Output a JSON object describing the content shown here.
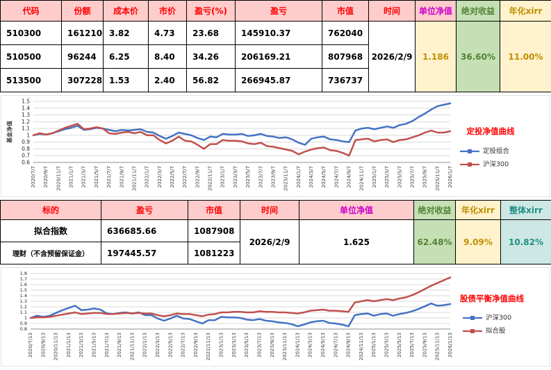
{
  "colors": {
    "header_pink_bg": "#FFCCCC",
    "header_red_text": "#FF0000",
    "header_magenta_text": "#CC00CC",
    "green_bg": "#C5E0B4",
    "green_text": "#538135",
    "yellow_bg": "#FFF2CC",
    "yellow_text": "#BF8F00",
    "teal_bg": "#CDE8E4",
    "teal_text": "#1F8F86",
    "series_blue": "#4472C4",
    "series_red": "#C0504D",
    "chart_title_red": "#FF0000"
  },
  "table1": {
    "headers": [
      "代码",
      "份额",
      "成本价",
      "市价",
      "盈亏(%)",
      "盈亏",
      "市值",
      "时间",
      "单位净值",
      "绝对收益",
      "年化xirr"
    ],
    "rows": [
      [
        "510300",
        "161210",
        "3.82",
        "4.73",
        "23.68",
        "145910.37",
        "762040"
      ],
      [
        "510500",
        "96244",
        "6.25",
        "8.40",
        "34.26",
        "206169.21",
        "807968"
      ],
      [
        "513500",
        "307228",
        "1.53",
        "2.40",
        "56.82",
        "266945.87",
        "736737"
      ]
    ],
    "summary": {
      "time": "2026/2/9",
      "unit_nav": "1.186",
      "abs_return": "36.60%",
      "xirr": "11.00%"
    }
  },
  "table2": {
    "headers": [
      "标的",
      "盈亏",
      "市值",
      "时间",
      "单位净值",
      "绝对收益",
      "年化xirr",
      "整体xirr"
    ],
    "rows": [
      [
        "拟合指数",
        "636685.66",
        "1087908"
      ],
      [
        "理财（不含预留保证金）",
        "197445.57",
        "1081223"
      ]
    ],
    "summary": {
      "time": "2026/2/9",
      "unit_nav": "1.625",
      "abs_return": "62.48%",
      "xirr": "9.09%",
      "overall_xirr": "10.82%"
    }
  },
  "chart_data": [
    {
      "type": "line",
      "title": "定投净值曲线",
      "title_color": "#FF0000",
      "ylabel": "基金净值",
      "ylim": [
        0.6,
        1.5
      ],
      "ytick_step": 0.1,
      "grid": true,
      "legend_position": "right",
      "x_labels": [
        "2020/7/7",
        "2020/9/7",
        "2020/11/7",
        "2021/1/7",
        "2021/3/7",
        "2021/5/7",
        "2021/7/7",
        "2021/9/7",
        "2021/11/7",
        "2022/1/7",
        "2022/3/7",
        "2022/5/7",
        "2022/7/7",
        "2022/9/7",
        "2022/11/7",
        "2023/1/7",
        "2023/3/7",
        "2023/5/7",
        "2023/7/7",
        "2023/9/7",
        "2023/11/7",
        "2024/1/7",
        "2024/3/7",
        "2024/5/7",
        "2024/7/7",
        "2024/9/7",
        "2024/11/7",
        "2025/1/7",
        "2025/3/7",
        "2025/5/7",
        "2025/7/7",
        "2025/9/7",
        "2025/11/7",
        "2026/1/7"
      ],
      "series": [
        {
          "name": "定投组合",
          "color": "#4472C4",
          "values": [
            1.0,
            1.02,
            1.01,
            1.03,
            1.06,
            1.09,
            1.11,
            1.14,
            1.08,
            1.09,
            1.11,
            1.1,
            1.08,
            1.06,
            1.08,
            1.07,
            1.08,
            1.09,
            1.05,
            1.04,
            0.99,
            0.95,
            0.99,
            1.04,
            1.02,
            1.0,
            0.96,
            0.93,
            0.98,
            0.97,
            1.02,
            1.01,
            1.01,
            1.02,
            0.99,
            1.0,
            1.02,
            0.99,
            0.98,
            0.96,
            0.97,
            0.94,
            0.89,
            0.86,
            0.95,
            0.97,
            0.98,
            0.94,
            0.93,
            0.91,
            0.9,
            1.07,
            1.1,
            1.11,
            1.09,
            1.11,
            1.13,
            1.11,
            1.15,
            1.17,
            1.21,
            1.27,
            1.32,
            1.38,
            1.43,
            1.45,
            1.47
          ]
        },
        {
          "name": "沪深300",
          "color": "#C0504D",
          "values": [
            1.0,
            1.03,
            1.01,
            1.03,
            1.07,
            1.11,
            1.14,
            1.17,
            1.09,
            1.1,
            1.12,
            1.1,
            1.03,
            1.02,
            1.04,
            1.05,
            1.03,
            1.05,
            1.0,
            1.0,
            0.93,
            0.88,
            0.92,
            0.98,
            0.92,
            0.91,
            0.86,
            0.8,
            0.87,
            0.87,
            0.93,
            0.92,
            0.92,
            0.91,
            0.88,
            0.87,
            0.89,
            0.84,
            0.83,
            0.81,
            0.79,
            0.77,
            0.72,
            0.76,
            0.79,
            0.81,
            0.82,
            0.78,
            0.77,
            0.74,
            0.7,
            0.93,
            0.94,
            0.95,
            0.91,
            0.93,
            0.94,
            0.9,
            0.93,
            0.94,
            0.97,
            1.0,
            1.04,
            1.07,
            1.04,
            1.04,
            1.06
          ]
        }
      ]
    },
    {
      "type": "line",
      "title": "股债平衡净值曲线",
      "title_color": "#FF0000",
      "ylabel": "",
      "ylim": [
        0.8,
        1.8
      ],
      "ytick_step": 0.1,
      "grid": true,
      "legend_position": "right",
      "x_labels": [
        "2020/7/13",
        "2020/9/13",
        "2020/11/13",
        "2021/1/13",
        "2021/3/13",
        "2021/5/13",
        "2021/7/13",
        "2021/9/13",
        "2021/11/13",
        "2022/1/13",
        "2022/3/13",
        "2022/5/13",
        "2022/7/13",
        "2022/9/13",
        "2022/11/13",
        "2023/1/13",
        "2023/3/13",
        "2023/5/13",
        "2023/7/13",
        "2023/9/13",
        "2023/11/13",
        "2024/1/13",
        "2024/3/13",
        "2024/5/13",
        "2024/7/13",
        "2024/9/13",
        "2024/11/13",
        "2025/1/13",
        "2025/3/13",
        "2025/5/13",
        "2025/7/13",
        "2025/9/13",
        "2025/11/13",
        "2026/1/13"
      ],
      "series": [
        {
          "name": "沪深300",
          "color": "#4472C4",
          "values": [
            1.0,
            1.04,
            1.02,
            1.04,
            1.09,
            1.14,
            1.18,
            1.22,
            1.14,
            1.15,
            1.17,
            1.15,
            1.08,
            1.07,
            1.09,
            1.1,
            1.08,
            1.1,
            1.05,
            1.05,
            0.99,
            0.95,
            0.99,
            1.04,
            0.99,
            0.98,
            0.94,
            0.9,
            0.96,
            0.96,
            1.02,
            1.01,
            1.01,
            1.0,
            0.97,
            0.96,
            0.98,
            0.95,
            0.94,
            0.92,
            0.91,
            0.89,
            0.85,
            0.88,
            0.92,
            0.94,
            0.95,
            0.91,
            0.9,
            0.88,
            0.85,
            1.05,
            1.07,
            1.08,
            1.04,
            1.07,
            1.08,
            1.04,
            1.07,
            1.09,
            1.12,
            1.16,
            1.21,
            1.26,
            1.22,
            1.23,
            1.25
          ]
        },
        {
          "name": "拟合股",
          "color": "#C0504D",
          "values": [
            1.0,
            1.01,
            1.01,
            1.02,
            1.04,
            1.06,
            1.08,
            1.1,
            1.07,
            1.08,
            1.09,
            1.09,
            1.07,
            1.07,
            1.08,
            1.09,
            1.08,
            1.09,
            1.08,
            1.08,
            1.05,
            1.03,
            1.05,
            1.08,
            1.07,
            1.07,
            1.05,
            1.03,
            1.06,
            1.07,
            1.1,
            1.1,
            1.11,
            1.11,
            1.1,
            1.1,
            1.12,
            1.11,
            1.11,
            1.1,
            1.1,
            1.09,
            1.08,
            1.1,
            1.13,
            1.14,
            1.15,
            1.13,
            1.13,
            1.12,
            1.11,
            1.28,
            1.3,
            1.32,
            1.3,
            1.32,
            1.34,
            1.32,
            1.35,
            1.37,
            1.41,
            1.46,
            1.52,
            1.58,
            1.63,
            1.68,
            1.73
          ]
        }
      ]
    }
  ]
}
